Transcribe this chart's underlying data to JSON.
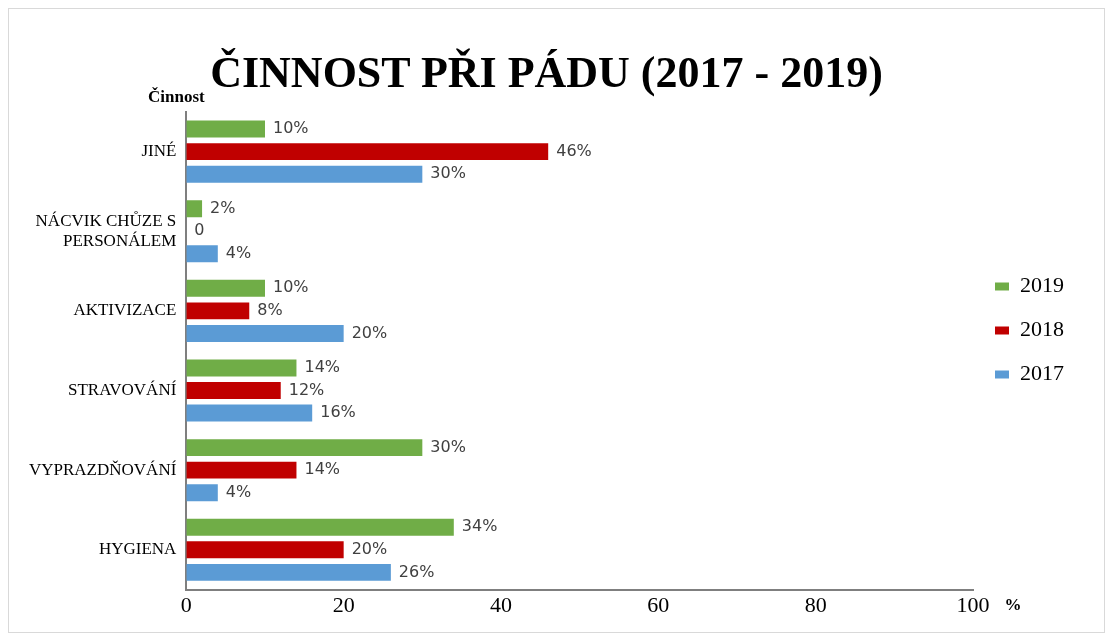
{
  "chart_data": {
    "type": "bar",
    "orientation": "horizontal",
    "title": "ČINNOST PŘI PÁDU (2017 - 2019)",
    "xlabel": "%",
    "ylabel": "Činnost",
    "categories": [
      "JINÉ",
      "NÁCVIK CHŮZE S PERSONÁLEM",
      "AKTIVIZACE",
      "STRAVOVÁNÍ",
      "VYPRAZDŇOVÁNÍ",
      "HYGIENA"
    ],
    "series": [
      {
        "name": "2019",
        "color": "#70ad47",
        "values": [
          10,
          2,
          10,
          14,
          30,
          34
        ],
        "value_labels": [
          "10%",
          "2%",
          "10%",
          "14%",
          "30%",
          "34%"
        ]
      },
      {
        "name": "2018",
        "color": "#c00000",
        "values": [
          46,
          0,
          8,
          12,
          14,
          20
        ],
        "value_labels": [
          "46%",
          "0",
          "8%",
          "12%",
          "14%",
          "20%"
        ]
      },
      {
        "name": "2017",
        "color": "#5b9bd5",
        "values": [
          30,
          4,
          20,
          16,
          4,
          26
        ],
        "value_labels": [
          "30%",
          "4%",
          "20%",
          "16%",
          "4%",
          "26%"
        ]
      }
    ],
    "xlim": [
      0,
      100
    ],
    "xticks": [
      0,
      20,
      40,
      60,
      80,
      100
    ],
    "grid": false,
    "legend": "right"
  }
}
